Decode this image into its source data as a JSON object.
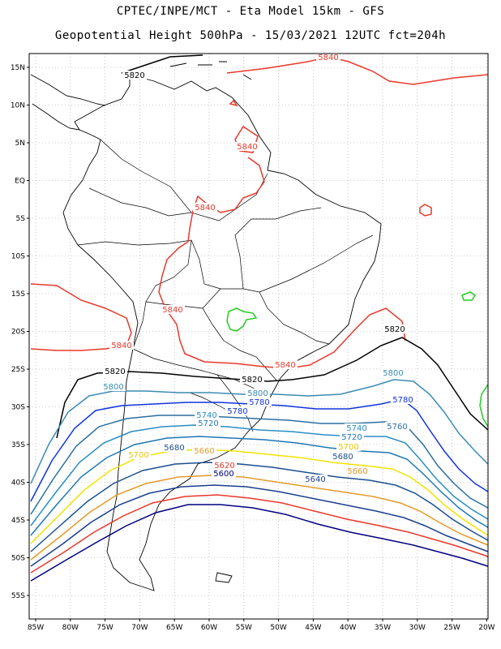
{
  "header": {
    "line1": "CPTEC/INPE/MCT -  Eta Model 15km - GFS",
    "line2": "Geopotential Height 500hPa - 15/03/2021 12UTC fct=204h"
  },
  "map": {
    "lat_labels": [
      "15N",
      "10N",
      "5N",
      "EQ",
      "5S",
      "10S",
      "15S",
      "20S",
      "25S",
      "30S",
      "35S",
      "40S",
      "45S",
      "50S",
      "55S"
    ],
    "lon_labels": [
      "85W",
      "80W",
      "75W",
      "70W",
      "65W",
      "60W",
      "55W",
      "50W",
      "45W",
      "40W",
      "35W",
      "30W",
      "25W",
      "20W"
    ],
    "contour_colors": {
      "5600": "#000080",
      "5620": "#e8392b",
      "5640": "#1b3f8f",
      "5660": "#e39b2a",
      "5680": "#1c4f8f",
      "5700": "#f2e300",
      "5720": "#1f77b4",
      "5740": "#2a8dc4",
      "5760": "#2b6fa0",
      "5780": "#1133dd",
      "5800": "#3b8bb4",
      "5820": "#000000",
      "5840": "#e8392b",
      "5860": "#22cc22"
    }
  },
  "contour_labels": [
    {
      "text": "5840",
      "color": "#e8392b"
    },
    {
      "text": "5820",
      "color": "#000000"
    },
    {
      "text": "5840",
      "color": "#e8392b"
    },
    {
      "text": "5840",
      "color": "#e8392b"
    },
    {
      "text": "5840",
      "color": "#e8392b"
    },
    {
      "text": "5840",
      "color": "#e8392b"
    },
    {
      "text": "5840",
      "color": "#e8392b"
    },
    {
      "text": "5820",
      "color": "#000000"
    },
    {
      "text": "5820",
      "color": "#000000"
    },
    {
      "text": "5820",
      "color": "#000000"
    },
    {
      "text": "5800",
      "color": "#3b8bb4"
    },
    {
      "text": "5800",
      "color": "#3b8bb4"
    },
    {
      "text": "5800",
      "color": "#3b8bb4"
    },
    {
      "text": "5780",
      "color": "#1133dd"
    },
    {
      "text": "5780",
      "color": "#1133dd"
    },
    {
      "text": "5780",
      "color": "#1133dd"
    },
    {
      "text": "5760",
      "color": "#2b6fa0"
    },
    {
      "text": "5740",
      "color": "#2a8dc4"
    },
    {
      "text": "5740",
      "color": "#2a8dc4"
    },
    {
      "text": "5720",
      "color": "#1f77b4"
    },
    {
      "text": "5720",
      "color": "#1f77b4"
    },
    {
      "text": "5700",
      "color": "#e6c800"
    },
    {
      "text": "5700",
      "color": "#e6c800"
    },
    {
      "text": "5680",
      "color": "#1c4f8f"
    },
    {
      "text": "5680",
      "color": "#1c4f8f"
    },
    {
      "text": "5660",
      "color": "#e39b2a"
    },
    {
      "text": "5660",
      "color": "#e39b2a"
    },
    {
      "text": "5640",
      "color": "#1b3f8f"
    },
    {
      "text": "5620",
      "color": "#e8392b"
    },
    {
      "text": "5600",
      "color": "#000080"
    }
  ]
}
